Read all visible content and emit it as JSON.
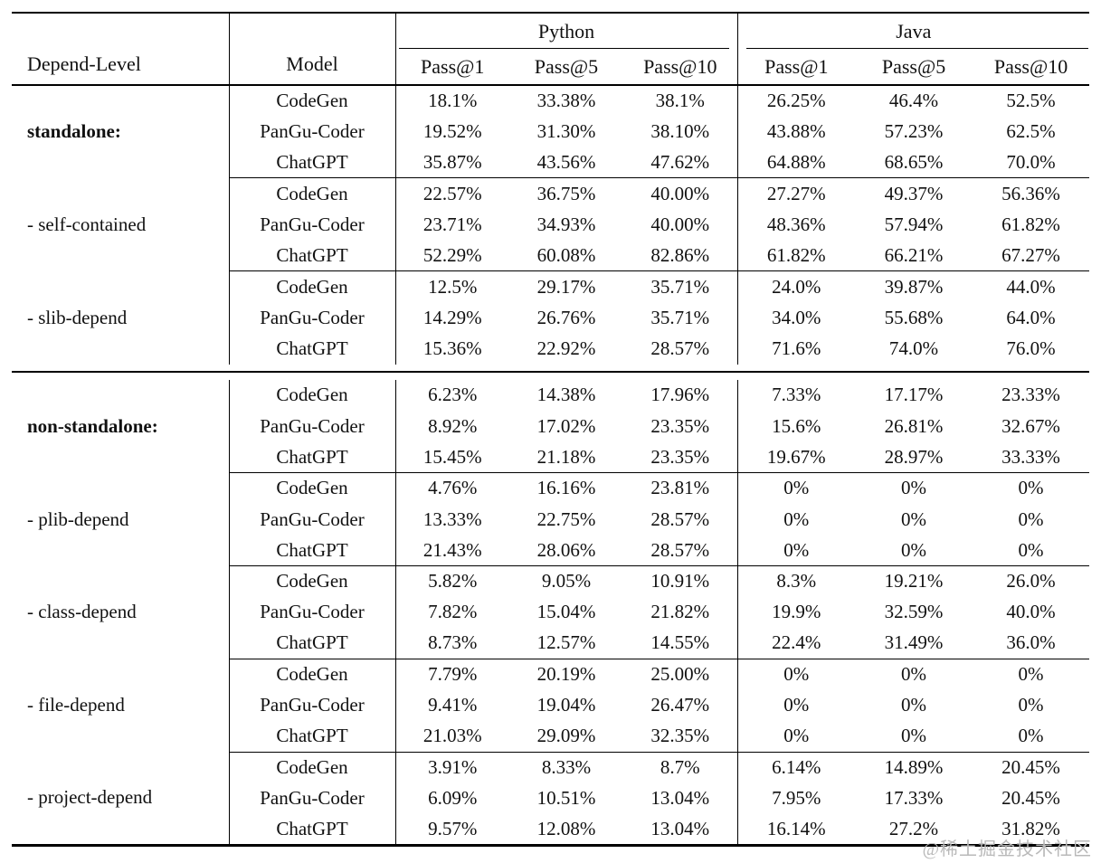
{
  "table": {
    "headers": {
      "depend_level": "Depend-Level",
      "model": "Model",
      "python": "Python",
      "java": "Java",
      "metrics": [
        "Pass@1",
        "Pass@5",
        "Pass@10"
      ]
    },
    "sections": [
      {
        "groups": [
          {
            "label": "standalone:",
            "bold": true,
            "rows": [
              {
                "model": "CodeGen",
                "python": [
                  "18.1%",
                  "33.38%",
                  "38.1%"
                ],
                "java": [
                  "26.25%",
                  "46.4%",
                  "52.5%"
                ]
              },
              {
                "model": "PanGu-Coder",
                "python": [
                  "19.52%",
                  "31.30%",
                  "38.10%"
                ],
                "java": [
                  "43.88%",
                  "57.23%",
                  "62.5%"
                ]
              },
              {
                "model": "ChatGPT",
                "python": [
                  "35.87%",
                  "43.56%",
                  "47.62%"
                ],
                "java": [
                  "64.88%",
                  "68.65%",
                  "70.0%"
                ]
              }
            ]
          },
          {
            "label": "- self-contained",
            "bold": false,
            "rows": [
              {
                "model": "CodeGen",
                "python": [
                  "22.57%",
                  "36.75%",
                  "40.00%"
                ],
                "java": [
                  "27.27%",
                  "49.37%",
                  "56.36%"
                ]
              },
              {
                "model": "PanGu-Coder",
                "python": [
                  "23.71%",
                  "34.93%",
                  "40.00%"
                ],
                "java": [
                  "48.36%",
                  "57.94%",
                  "61.82%"
                ]
              },
              {
                "model": "ChatGPT",
                "python": [
                  "52.29%",
                  "60.08%",
                  "82.86%"
                ],
                "java": [
                  "61.82%",
                  "66.21%",
                  "67.27%"
                ]
              }
            ]
          },
          {
            "label": "- slib-depend",
            "bold": false,
            "rows": [
              {
                "model": "CodeGen",
                "python": [
                  "12.5%",
                  "29.17%",
                  "35.71%"
                ],
                "java": [
                  "24.0%",
                  "39.87%",
                  "44.0%"
                ]
              },
              {
                "model": "PanGu-Coder",
                "python": [
                  "14.29%",
                  "26.76%",
                  "35.71%"
                ],
                "java": [
                  "34.0%",
                  "55.68%",
                  "64.0%"
                ]
              },
              {
                "model": "ChatGPT",
                "python": [
                  "15.36%",
                  "22.92%",
                  "28.57%"
                ],
                "java": [
                  "71.6%",
                  "74.0%",
                  "76.0%"
                ]
              }
            ]
          }
        ]
      },
      {
        "groups": [
          {
            "label": "non-standalone:",
            "bold": true,
            "rows": [
              {
                "model": "CodeGen",
                "python": [
                  "6.23%",
                  "14.38%",
                  "17.96%"
                ],
                "java": [
                  "7.33%",
                  "17.17%",
                  "23.33%"
                ]
              },
              {
                "model": "PanGu-Coder",
                "python": [
                  "8.92%",
                  "17.02%",
                  "23.35%"
                ],
                "java": [
                  "15.6%",
                  "26.81%",
                  "32.67%"
                ]
              },
              {
                "model": "ChatGPT",
                "python": [
                  "15.45%",
                  "21.18%",
                  "23.35%"
                ],
                "java": [
                  "19.67%",
                  "28.97%",
                  "33.33%"
                ]
              }
            ]
          },
          {
            "label": "- plib-depend",
            "bold": false,
            "rows": [
              {
                "model": "CodeGen",
                "python": [
                  "4.76%",
                  "16.16%",
                  "23.81%"
                ],
                "java": [
                  "0%",
                  "0%",
                  "0%"
                ]
              },
              {
                "model": "PanGu-Coder",
                "python": [
                  "13.33%",
                  "22.75%",
                  "28.57%"
                ],
                "java": [
                  "0%",
                  "0%",
                  "0%"
                ]
              },
              {
                "model": "ChatGPT",
                "python": [
                  "21.43%",
                  "28.06%",
                  "28.57%"
                ],
                "java": [
                  "0%",
                  "0%",
                  "0%"
                ]
              }
            ]
          },
          {
            "label": "- class-depend",
            "bold": false,
            "rows": [
              {
                "model": "CodeGen",
                "python": [
                  "5.82%",
                  "9.05%",
                  "10.91%"
                ],
                "java": [
                  "8.3%",
                  "19.21%",
                  "26.0%"
                ]
              },
              {
                "model": "PanGu-Coder",
                "python": [
                  "7.82%",
                  "15.04%",
                  "21.82%"
                ],
                "java": [
                  "19.9%",
                  "32.59%",
                  "40.0%"
                ]
              },
              {
                "model": "ChatGPT",
                "python": [
                  "8.73%",
                  "12.57%",
                  "14.55%"
                ],
                "java": [
                  "22.4%",
                  "31.49%",
                  "36.0%"
                ]
              }
            ]
          },
          {
            "label": "- file-depend",
            "bold": false,
            "rows": [
              {
                "model": "CodeGen",
                "python": [
                  "7.79%",
                  "20.19%",
                  "25.00%"
                ],
                "java": [
                  "0%",
                  "0%",
                  "0%"
                ]
              },
              {
                "model": "PanGu-Coder",
                "python": [
                  "9.41%",
                  "19.04%",
                  "26.47%"
                ],
                "java": [
                  "0%",
                  "0%",
                  "0%"
                ]
              },
              {
                "model": "ChatGPT",
                "python": [
                  "21.03%",
                  "29.09%",
                  "32.35%"
                ],
                "java": [
                  "0%",
                  "0%",
                  "0%"
                ]
              }
            ]
          },
          {
            "label": "- project-depend",
            "bold": false,
            "rows": [
              {
                "model": "CodeGen",
                "python": [
                  "3.91%",
                  "8.33%",
                  "8.7%"
                ],
                "java": [
                  "6.14%",
                  "14.89%",
                  "20.45%"
                ]
              },
              {
                "model": "PanGu-Coder",
                "python": [
                  "6.09%",
                  "10.51%",
                  "13.04%"
                ],
                "java": [
                  "7.95%",
                  "17.33%",
                  "20.45%"
                ]
              },
              {
                "model": "ChatGPT",
                "python": [
                  "9.57%",
                  "12.08%",
                  "13.04%"
                ],
                "java": [
                  "16.14%",
                  "27.2%",
                  "31.82%"
                ]
              }
            ]
          }
        ]
      }
    ]
  },
  "watermark": {
    "text": "@稀土掘金技术社区"
  }
}
